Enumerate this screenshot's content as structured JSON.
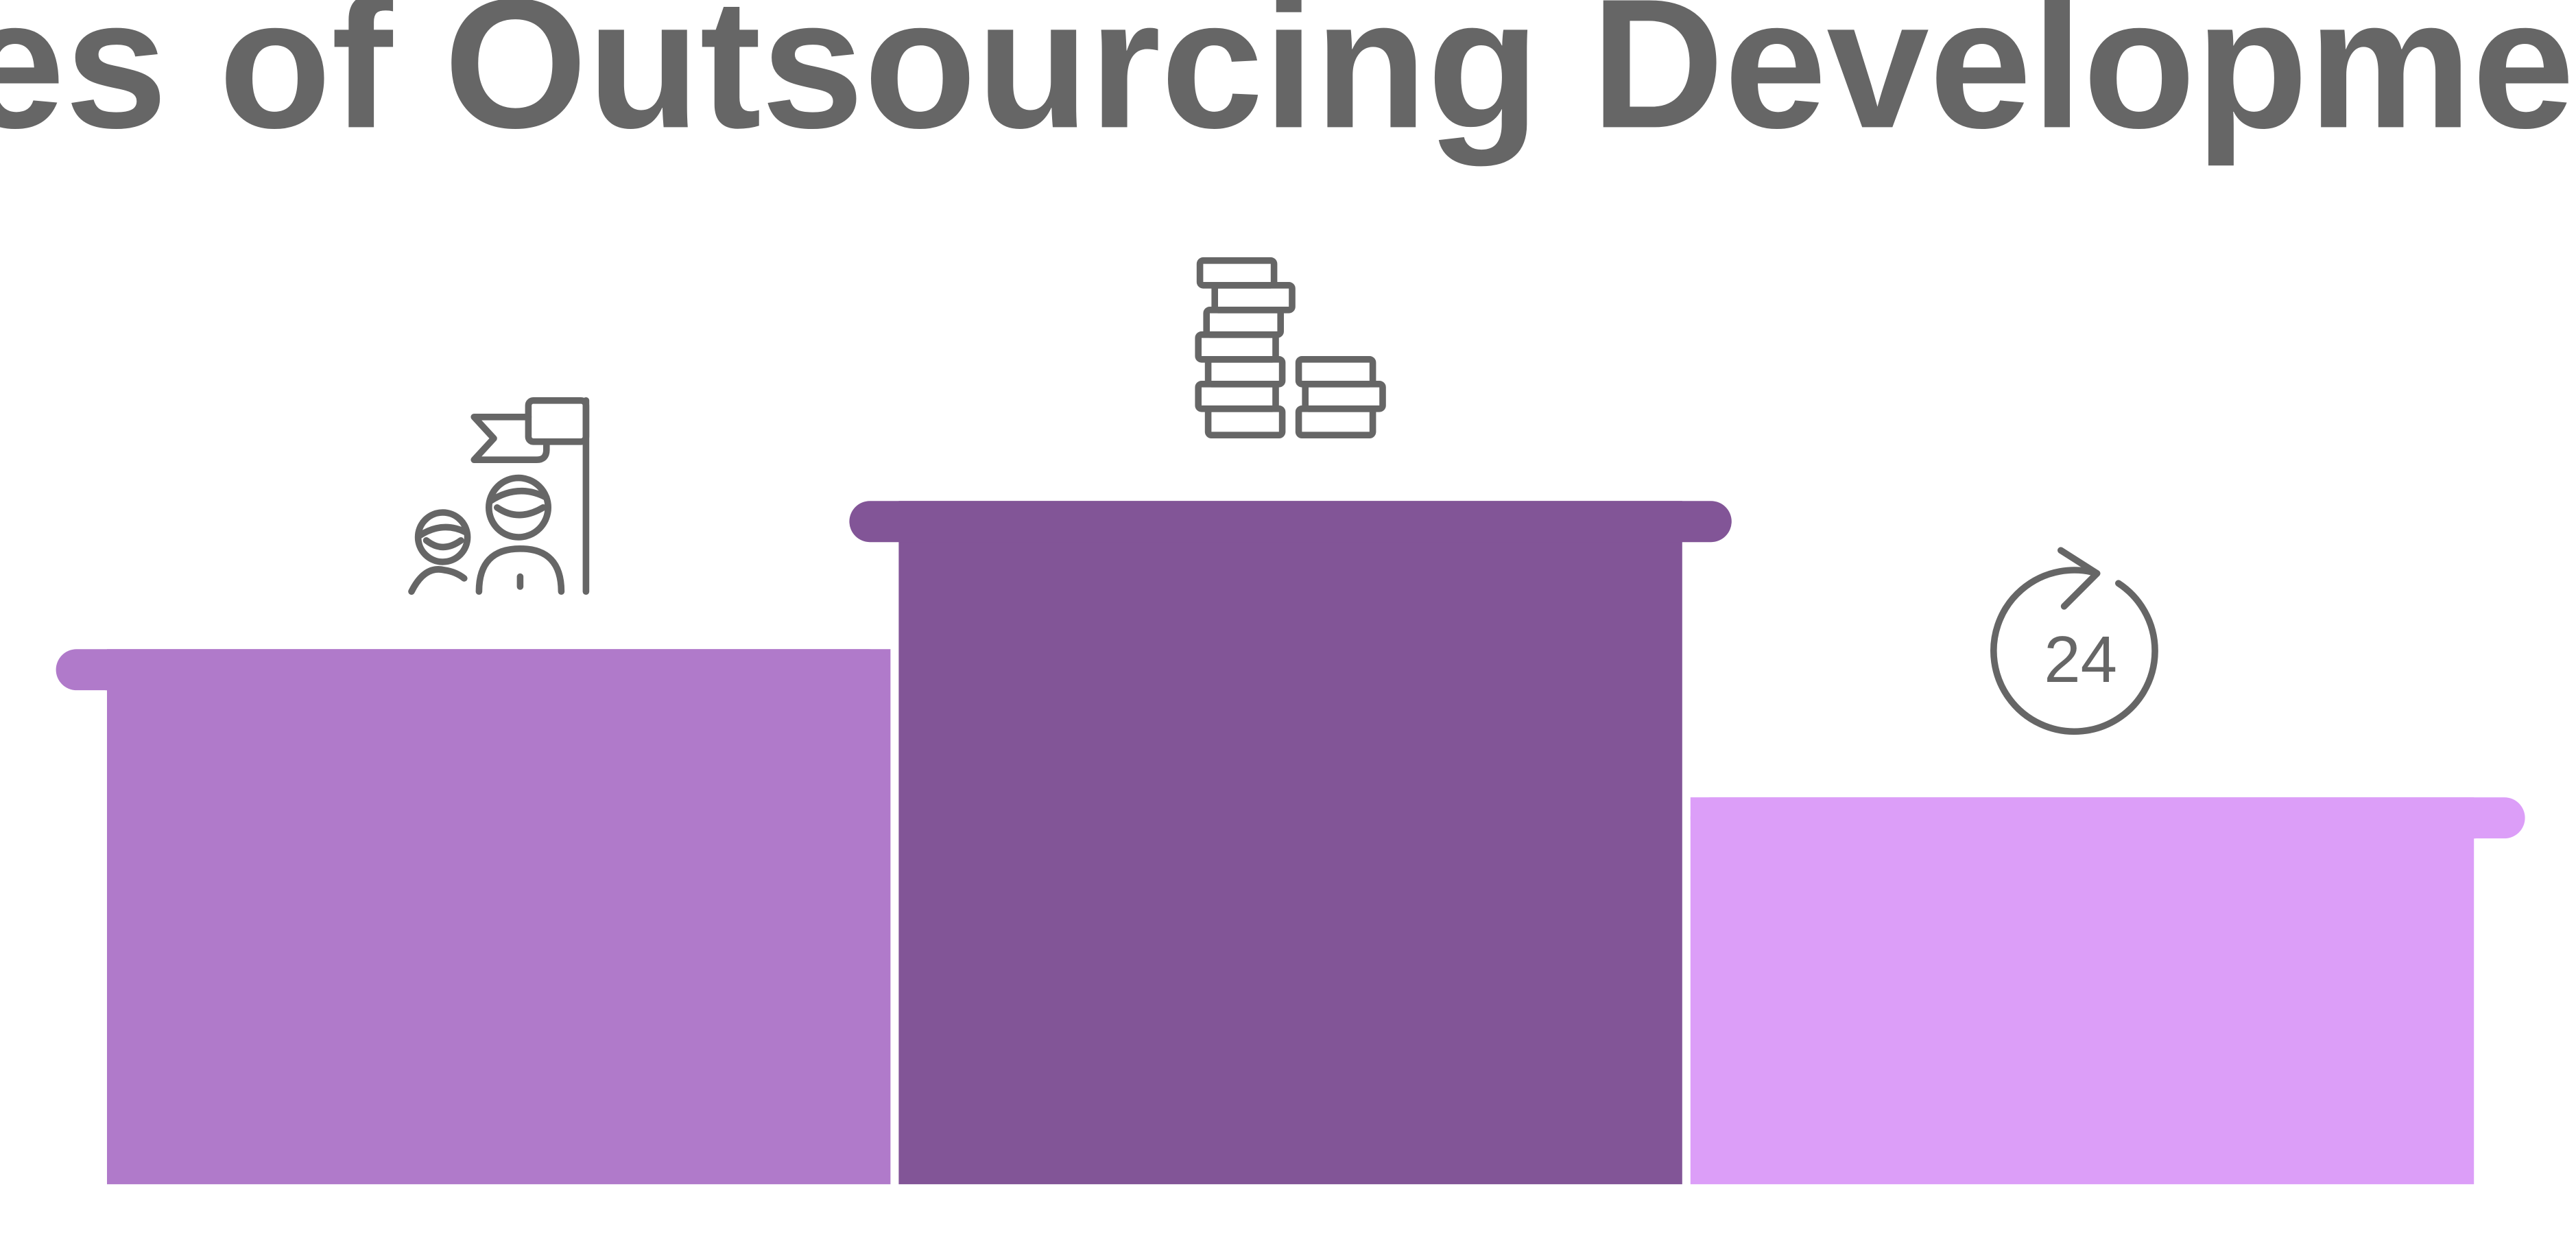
{
  "title": "Advantages of Outsourcing Development to India",
  "colors": {
    "text": "#666666",
    "icon": "#666666",
    "background": "#ffffff"
  },
  "podium": {
    "blocks": [
      {
        "position": "left",
        "rank": 2,
        "color": "#b07aca",
        "icon": "team-flag-icon"
      },
      {
        "position": "center",
        "rank": 1,
        "color": "#825597",
        "icon": "coin-stacks-icon"
      },
      {
        "position": "right",
        "rank": 3,
        "color": "#dc9ef8",
        "icon": "24-hour-cycle-icon"
      }
    ]
  },
  "icons": {
    "clock_label": "24"
  }
}
